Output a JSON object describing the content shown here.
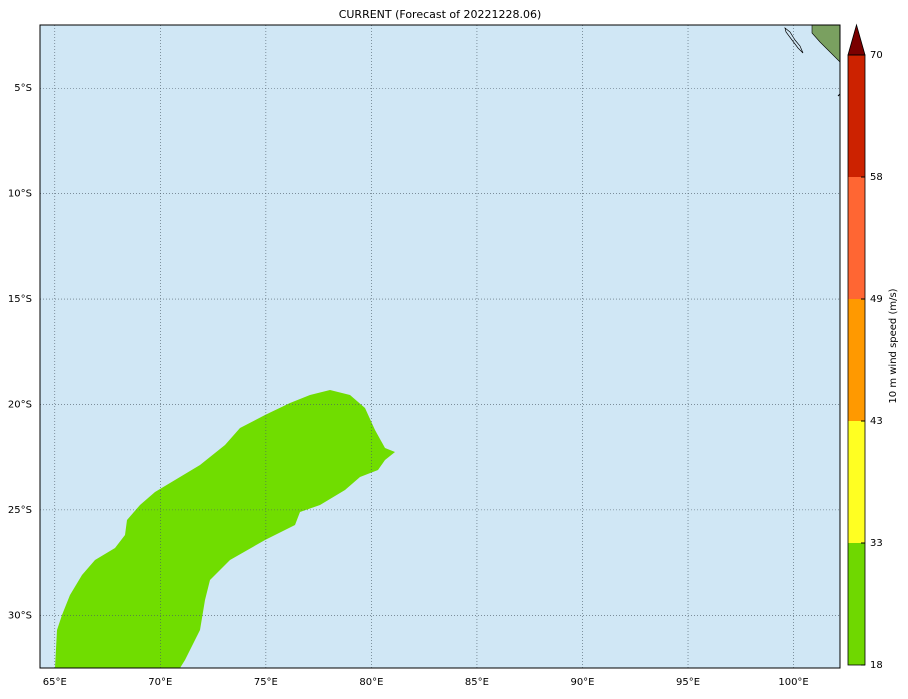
{
  "title": "CURRENT (Forecast of 20221228.06)",
  "map": {
    "lon_range": [
      64.3,
      102.2
    ],
    "lat_range": [
      -2.0,
      -32.5
    ],
    "lon_ticks": [
      {
        "value": 65,
        "label": "65°E"
      },
      {
        "value": 70,
        "label": "70°E"
      },
      {
        "value": 75,
        "label": "75°E"
      },
      {
        "value": 80,
        "label": "80°E"
      },
      {
        "value": 85,
        "label": "85°E"
      },
      {
        "value": 90,
        "label": "90°E"
      },
      {
        "value": 95,
        "label": "95°E"
      },
      {
        "value": 100,
        "label": "100°E"
      }
    ],
    "lat_ticks": [
      {
        "value": -5,
        "label": "5°S"
      },
      {
        "value": -10,
        "label": "10°S"
      },
      {
        "value": -15,
        "label": "15°S"
      },
      {
        "value": -20,
        "label": "20°S"
      },
      {
        "value": -25,
        "label": "25°S"
      },
      {
        "value": -30,
        "label": "30°S"
      }
    ]
  },
  "colorbar": {
    "label": "10 m wind speed (m/s)",
    "levels": [
      18,
      33,
      43,
      49,
      58,
      70
    ],
    "colors": [
      "#6fd800",
      "#ffff22",
      "#ff9900",
      "#ff6633",
      "#cc2200"
    ],
    "extend_color": "#7a0000"
  }
}
